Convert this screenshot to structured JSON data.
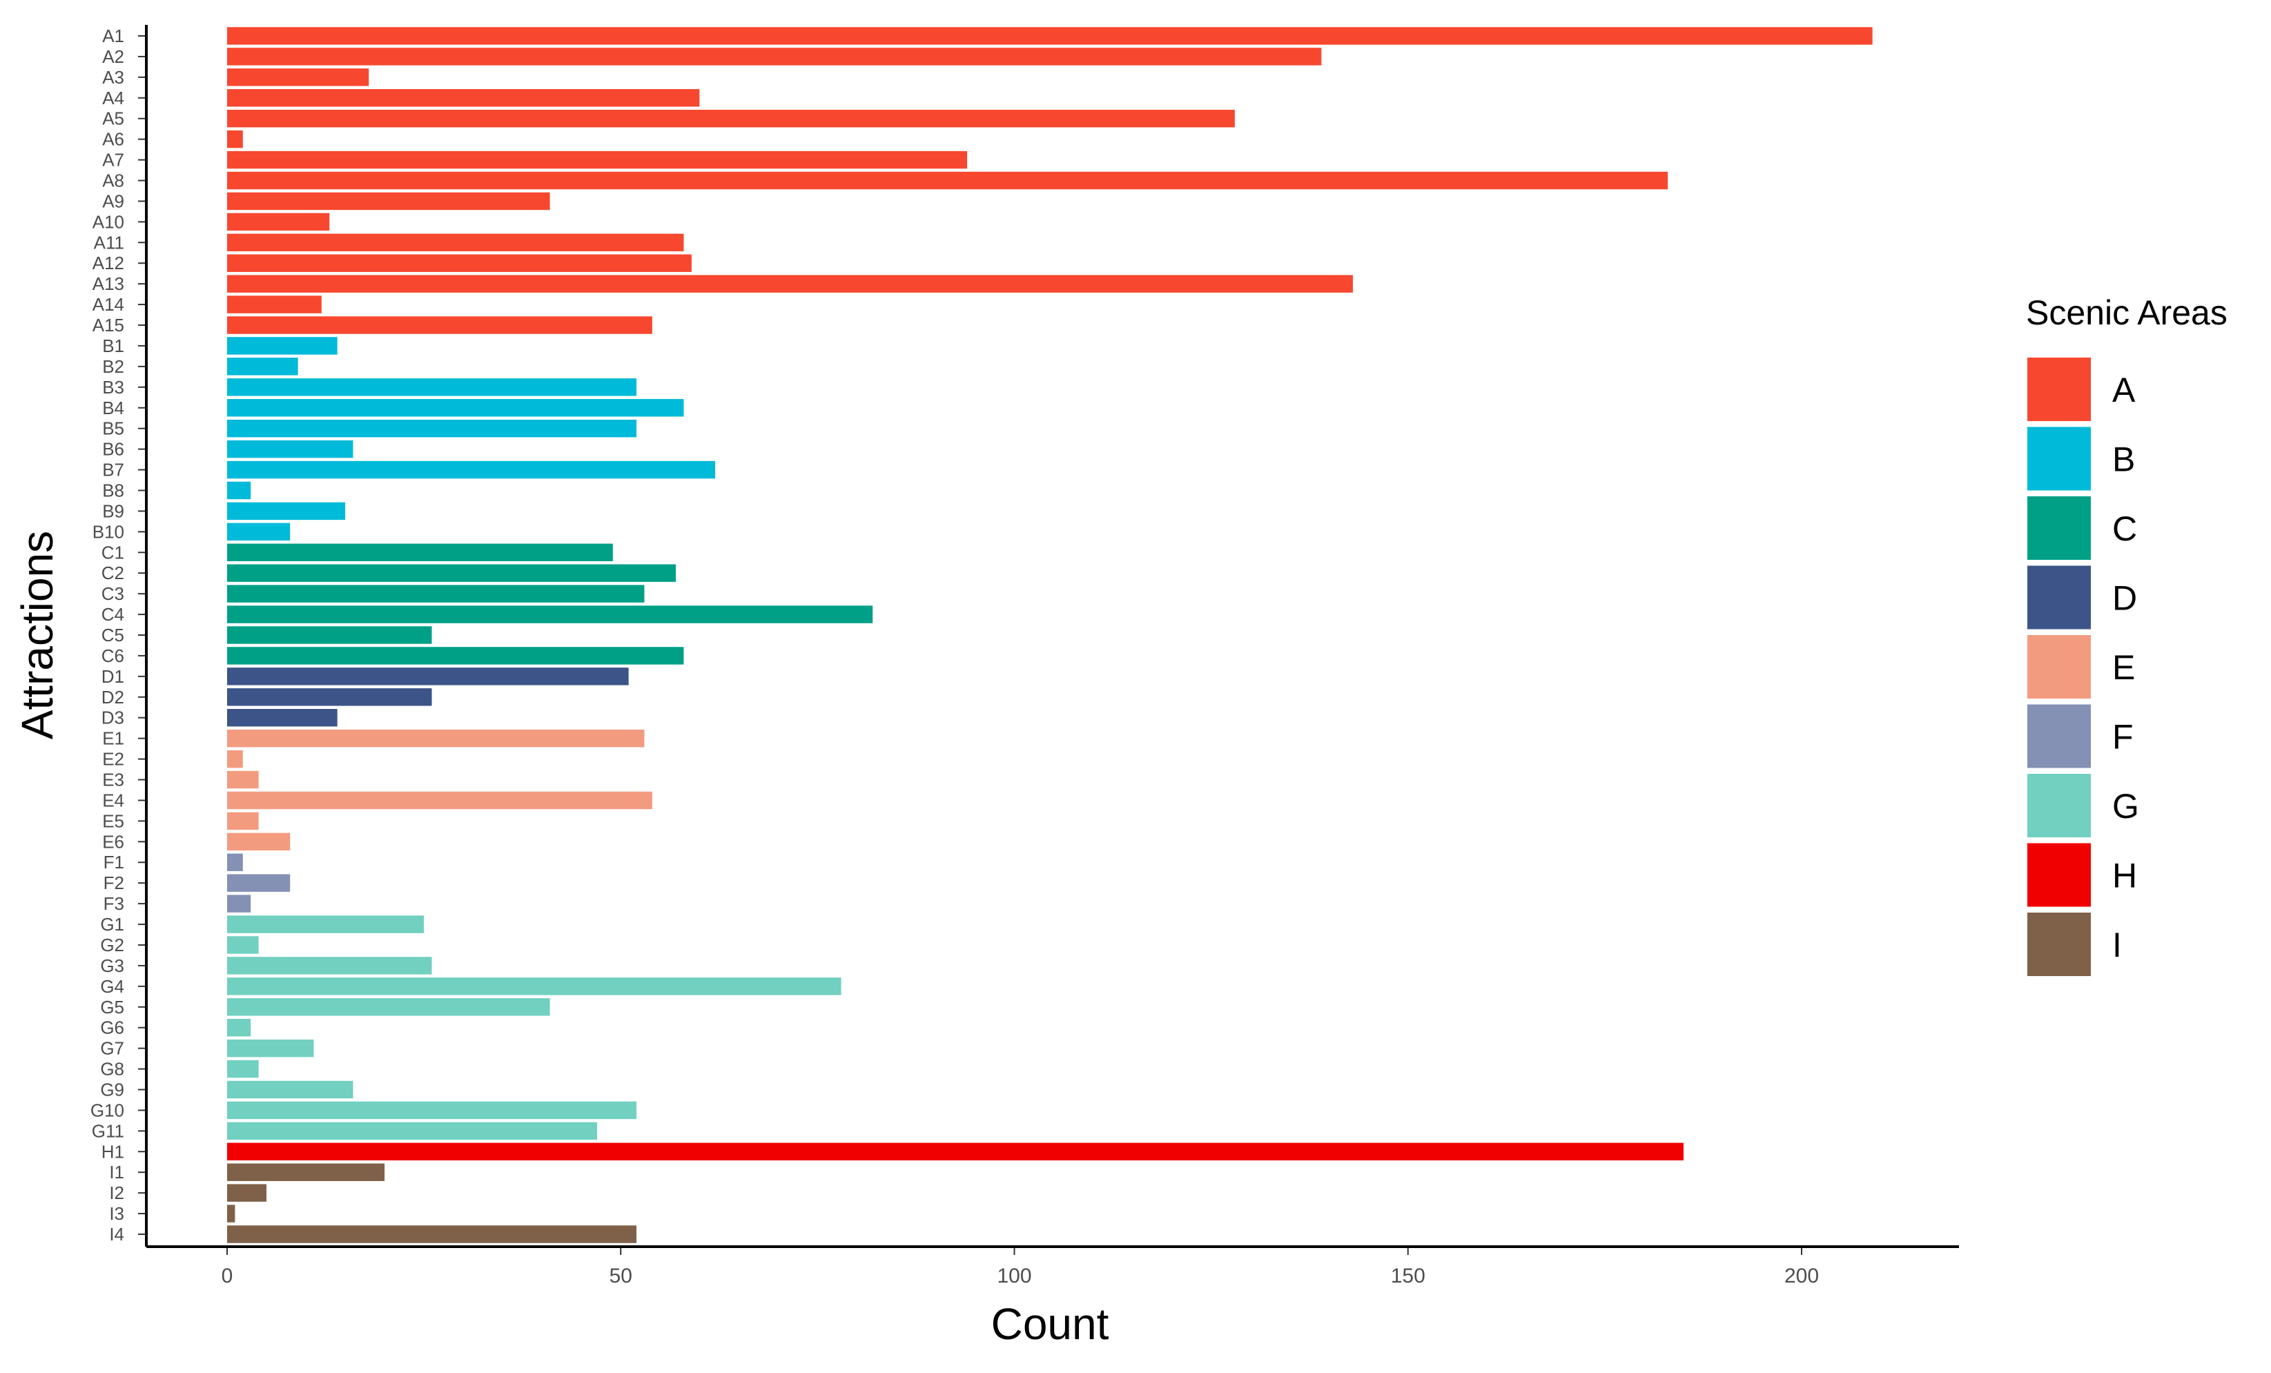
{
  "chart_data": {
    "type": "bar",
    "orientation": "horizontal",
    "xlabel": "Count",
    "ylabel": "Attractions",
    "xlim": [
      -10,
      220
    ],
    "x_ticks": [
      0,
      50,
      100,
      150,
      200
    ],
    "grid": false,
    "legend_title": "Scenic Areas",
    "legend_position": "right",
    "groups": [
      {
        "name": "A",
        "color": "#F8472F"
      },
      {
        "name": "B",
        "color": "#00BAD9"
      },
      {
        "name": "C",
        "color": "#00A087"
      },
      {
        "name": "D",
        "color": "#3C5488"
      },
      {
        "name": "E",
        "color": "#F39B7F"
      },
      {
        "name": "F",
        "color": "#8491B4"
      },
      {
        "name": "G",
        "color": "#71D0C0"
      },
      {
        "name": "H",
        "color": "#F10000"
      },
      {
        "name": "I",
        "color": "#7E6148"
      }
    ],
    "bars": [
      {
        "label": "A1",
        "group": "A",
        "value": 209
      },
      {
        "label": "A2",
        "group": "A",
        "value": 139
      },
      {
        "label": "A3",
        "group": "A",
        "value": 18
      },
      {
        "label": "A4",
        "group": "A",
        "value": 60
      },
      {
        "label": "A5",
        "group": "A",
        "value": 128
      },
      {
        "label": "A6",
        "group": "A",
        "value": 2
      },
      {
        "label": "A7",
        "group": "A",
        "value": 94
      },
      {
        "label": "A8",
        "group": "A",
        "value": 183
      },
      {
        "label": "A9",
        "group": "A",
        "value": 41
      },
      {
        "label": "A10",
        "group": "A",
        "value": 13
      },
      {
        "label": "A11",
        "group": "A",
        "value": 58
      },
      {
        "label": "A12",
        "group": "A",
        "value": 59
      },
      {
        "label": "A13",
        "group": "A",
        "value": 143
      },
      {
        "label": "A14",
        "group": "A",
        "value": 12
      },
      {
        "label": "A15",
        "group": "A",
        "value": 54
      },
      {
        "label": "B1",
        "group": "B",
        "value": 14
      },
      {
        "label": "B2",
        "group": "B",
        "value": 9
      },
      {
        "label": "B3",
        "group": "B",
        "value": 52
      },
      {
        "label": "B4",
        "group": "B",
        "value": 58
      },
      {
        "label": "B5",
        "group": "B",
        "value": 52
      },
      {
        "label": "B6",
        "group": "B",
        "value": 16
      },
      {
        "label": "B7",
        "group": "B",
        "value": 62
      },
      {
        "label": "B8",
        "group": "B",
        "value": 3
      },
      {
        "label": "B9",
        "group": "B",
        "value": 15
      },
      {
        "label": "B10",
        "group": "B",
        "value": 8
      },
      {
        "label": "C1",
        "group": "C",
        "value": 49
      },
      {
        "label": "C2",
        "group": "C",
        "value": 57
      },
      {
        "label": "C3",
        "group": "C",
        "value": 53
      },
      {
        "label": "C4",
        "group": "C",
        "value": 82
      },
      {
        "label": "C5",
        "group": "C",
        "value": 26
      },
      {
        "label": "C6",
        "group": "C",
        "value": 58
      },
      {
        "label": "D1",
        "group": "D",
        "value": 51
      },
      {
        "label": "D2",
        "group": "D",
        "value": 26
      },
      {
        "label": "D3",
        "group": "D",
        "value": 14
      },
      {
        "label": "E1",
        "group": "E",
        "value": 53
      },
      {
        "label": "E2",
        "group": "E",
        "value": 2
      },
      {
        "label": "E3",
        "group": "E",
        "value": 4
      },
      {
        "label": "E4",
        "group": "E",
        "value": 54
      },
      {
        "label": "E5",
        "group": "E",
        "value": 4
      },
      {
        "label": "E6",
        "group": "E",
        "value": 8
      },
      {
        "label": "F1",
        "group": "F",
        "value": 2
      },
      {
        "label": "F2",
        "group": "F",
        "value": 8
      },
      {
        "label": "F3",
        "group": "F",
        "value": 3
      },
      {
        "label": "G1",
        "group": "G",
        "value": 25
      },
      {
        "label": "G2",
        "group": "G",
        "value": 4
      },
      {
        "label": "G3",
        "group": "G",
        "value": 26
      },
      {
        "label": "G4",
        "group": "G",
        "value": 78
      },
      {
        "label": "G5",
        "group": "G",
        "value": 41
      },
      {
        "label": "G6",
        "group": "G",
        "value": 3
      },
      {
        "label": "G7",
        "group": "G",
        "value": 11
      },
      {
        "label": "G8",
        "group": "G",
        "value": 4
      },
      {
        "label": "G9",
        "group": "G",
        "value": 16
      },
      {
        "label": "G10",
        "group": "G",
        "value": 52
      },
      {
        "label": "G11",
        "group": "G",
        "value": 47
      },
      {
        "label": "H1",
        "group": "H",
        "value": 185
      },
      {
        "label": "I1",
        "group": "I",
        "value": 20
      },
      {
        "label": "I2",
        "group": "I",
        "value": 5
      },
      {
        "label": "I3",
        "group": "I",
        "value": 1
      },
      {
        "label": "I4",
        "group": "I",
        "value": 52
      }
    ]
  }
}
